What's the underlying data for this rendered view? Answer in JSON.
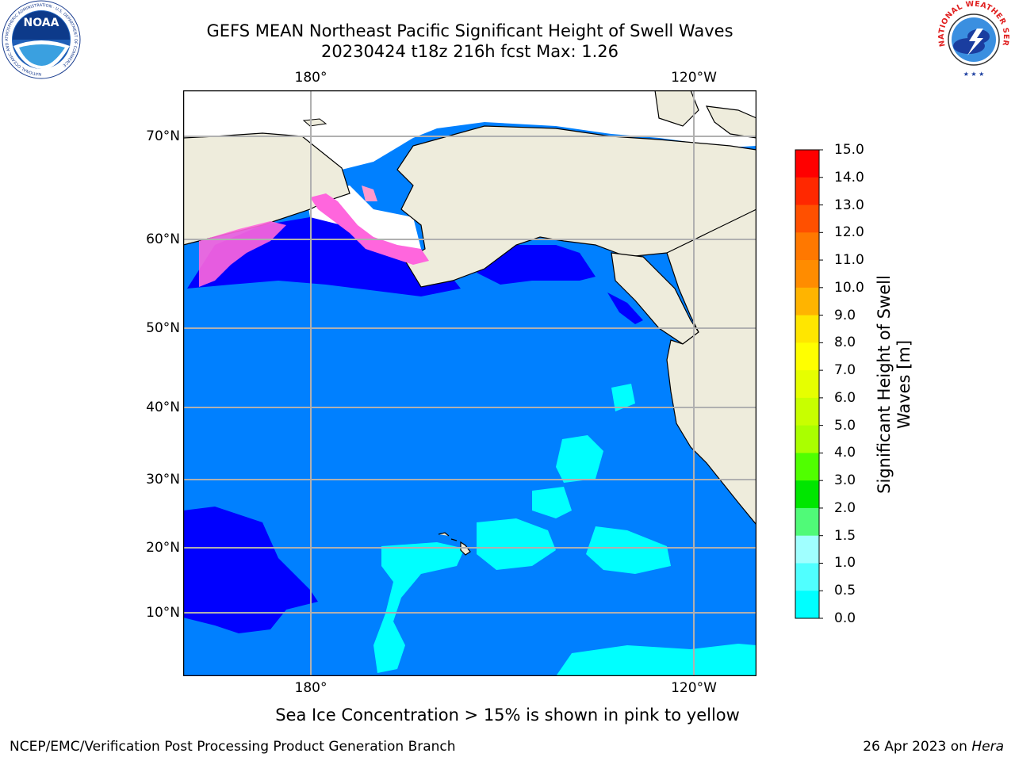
{
  "title": {
    "line1": "GEFS MEAN Northeast Pacific Significant Height of Swell Waves",
    "line2": "20230424 t18z 216h fcst   Max: 1.26"
  },
  "map": {
    "lon_labels_top": [
      "180°",
      "120°W"
    ],
    "lon_labels_bottom": [
      "180°",
      "120°W"
    ],
    "lat_labels": [
      "70°N",
      "60°N",
      "50°N",
      "40°N",
      "30°N",
      "20°N",
      "10°N"
    ],
    "colors": {
      "ocean": "#0080ff",
      "land": "#eeecdc",
      "ice_free_low": "#0000ff",
      "swell_1_5": "#00ffff"
    }
  },
  "colorbar": {
    "title": "Significant Height of Swell Waves [m]",
    "ticks": [
      "15.0",
      "14.0",
      "13.0",
      "12.0",
      "11.0",
      "10.0",
      "9.0",
      "8.0",
      "7.0",
      "6.0",
      "5.0",
      "4.0",
      "3.0",
      "2.0",
      "1.5",
      "1.0",
      "0.5",
      "0.0"
    ],
    "colors": [
      "#ff0000",
      "#ff2800",
      "#ff5000",
      "#ff7800",
      "#ff8c00",
      "#ffb400",
      "#ffe600",
      "#ffff00",
      "#e6ff00",
      "#c8ff00",
      "#aaff00",
      "#50ff00",
      "#00e600",
      "#50fa78",
      "#a0ffff",
      "#50ffff",
      "#00ffff",
      "#0080ff",
      "#0000ff"
    ]
  },
  "footer": {
    "note": "Sea Ice Concentration > 15% is shown in pink to yellow",
    "left": "NCEP/EMC/Verification Post Processing Product Generation Branch",
    "right_date": "26 Apr 2023 on",
    "right_host": "Hera"
  },
  "logos": {
    "noaa": "NOAA",
    "noaa_ring": "NATIONAL OCEANIC AND ATMOSPHERIC ADMINISTRATION · U.S. DEPARTMENT OF COMMERCE",
    "nws_ring": "NATIONAL WEATHER SERVICE"
  }
}
